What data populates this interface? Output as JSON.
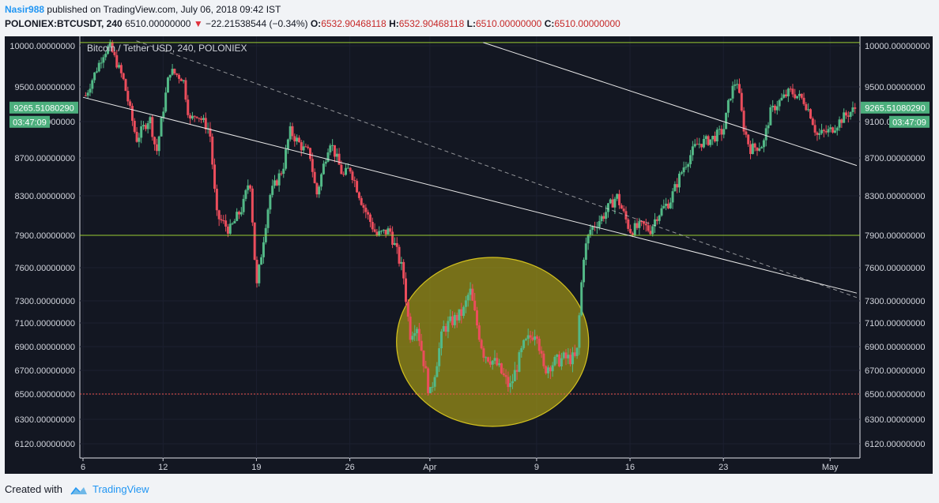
{
  "header": {
    "author": "Nasir988",
    "published_text": "published on TradingView.com, July 06, 2018 09:42 IST",
    "symbol": "POLONIEX:BTCUSDT, 240",
    "last": "6510.00000000",
    "change_arrow": "▼",
    "change": "−22.21538544 (−0.34%)",
    "o_label": "O:",
    "o_value": "6532.90468118",
    "h_label": "H:",
    "h_value": "6532.90468118",
    "l_label": "L:",
    "l_value": "6510.00000000",
    "c_label": "C:",
    "c_value": "6510.00000000"
  },
  "footer": {
    "created_with": "Created with",
    "brand": "TradingView"
  },
  "colors": {
    "background": "#131722",
    "up": "#53b987",
    "down": "#eb4d5c",
    "ellipse_fill": "#b4a814",
    "ellipse_stroke": "#d4c21e",
    "h_line": "#9acd32",
    "support_line": "#ef5350",
    "trend_line": "#e8e8e8",
    "price_badge": "#4caf7d"
  },
  "chart_data": {
    "type": "candlestick",
    "title": "Bitcoin / Tether USD, 240, POLONIEX",
    "ylim": [
      6000,
      10080
    ],
    "y_ticks": [
      "10000.00000000",
      "9500.00000000",
      "9100.00000000",
      "8700.00000000",
      "8300.00000000",
      "7900.00000000",
      "7600.00000000",
      "7300.00000000",
      "7100.00000000",
      "6900.00000000",
      "6700.00000000",
      "6500.00000000",
      "6300.00000000",
      "6120.00000000"
    ],
    "x_ticks": [
      "6",
      "12",
      "19",
      "26",
      "Apr",
      "9",
      "16",
      "23",
      "May"
    ],
    "x_tick_days": [
      6,
      12,
      19,
      26,
      32,
      40,
      47,
      54,
      62
    ],
    "x_range_days": [
      6,
      64
    ],
    "last_price": "9265.51080290",
    "countdown": "03:47:09",
    "horizontal_levels": [
      {
        "price": 10040,
        "style": "solid"
      },
      {
        "price": 7900,
        "style": "solid"
      },
      {
        "price": 6500,
        "style": "dotted"
      }
    ],
    "trend_lines": [
      {
        "from": [
          6,
          9380
        ],
        "to": [
          64,
          7370
        ],
        "style": "solid"
      },
      {
        "from": [
          10,
          10060
        ],
        "to": [
          64,
          7330
        ],
        "style": "dashed"
      },
      {
        "from": [
          36,
          10040
        ],
        "to": [
          64,
          8620
        ],
        "style": "solid"
      }
    ],
    "highlight_ellipse": {
      "center": [
        36.7,
        6940
      ],
      "day_radius": 7.2,
      "price_radius": 720
    },
    "price_path": [
      [
        6.2,
        9400
      ],
      [
        7.5,
        9900
      ],
      [
        8,
        10000
      ],
      [
        9,
        9600
      ],
      [
        10,
        8900
      ],
      [
        11,
        9150
      ],
      [
        11.5,
        8750
      ],
      [
        12.5,
        9700
      ],
      [
        13.5,
        9600
      ],
      [
        14,
        9100
      ],
      [
        14.5,
        9200
      ],
      [
        15.5,
        9000
      ],
      [
        16,
        8100
      ],
      [
        17,
        7950
      ],
      [
        18,
        8200
      ],
      [
        18.5,
        8500
      ],
      [
        19,
        7400
      ],
      [
        20,
        8300
      ],
      [
        21,
        8600
      ],
      [
        21.5,
        9000
      ],
      [
        22.5,
        8800
      ],
      [
        23,
        8750
      ],
      [
        23.5,
        8300
      ],
      [
        24.5,
        8900
      ],
      [
        25.5,
        8500
      ],
      [
        26,
        8600
      ],
      [
        27,
        8200
      ],
      [
        28,
        7900
      ],
      [
        29,
        7950
      ],
      [
        30,
        7550
      ],
      [
        30.5,
        7000
      ],
      [
        31,
        7100
      ],
      [
        31.5,
        6800
      ],
      [
        32,
        6480
      ],
      [
        33,
        7050
      ],
      [
        34.5,
        7200
      ],
      [
        35,
        7400
      ],
      [
        35.5,
        7100
      ],
      [
        36,
        6850
      ],
      [
        37,
        6750
      ],
      [
        38,
        6550
      ],
      [
        39,
        6900
      ],
      [
        40,
        7050
      ],
      [
        40.5,
        6700
      ],
      [
        41,
        6750
      ],
      [
        42,
        6800
      ],
      [
        43,
        6800
      ],
      [
        43.5,
        7700
      ],
      [
        44,
        7950
      ],
      [
        45,
        8100
      ],
      [
        46,
        8300
      ],
      [
        47,
        7950
      ],
      [
        48,
        8000
      ],
      [
        48.5,
        7950
      ],
      [
        49,
        8100
      ],
      [
        50,
        8250
      ],
      [
        51,
        8600
      ],
      [
        52,
        8850
      ],
      [
        53,
        8900
      ],
      [
        54,
        9000
      ],
      [
        54.5,
        9400
      ],
      [
        55,
        9600
      ],
      [
        55.5,
        9050
      ],
      [
        56,
        8800
      ],
      [
        57,
        8850
      ],
      [
        57.5,
        9200
      ],
      [
        58,
        9300
      ],
      [
        59,
        9450
      ],
      [
        60,
        9350
      ],
      [
        60.5,
        9200
      ],
      [
        61,
        8950
      ],
      [
        62,
        9000
      ],
      [
        63,
        9150
      ],
      [
        64,
        9265
      ]
    ]
  }
}
